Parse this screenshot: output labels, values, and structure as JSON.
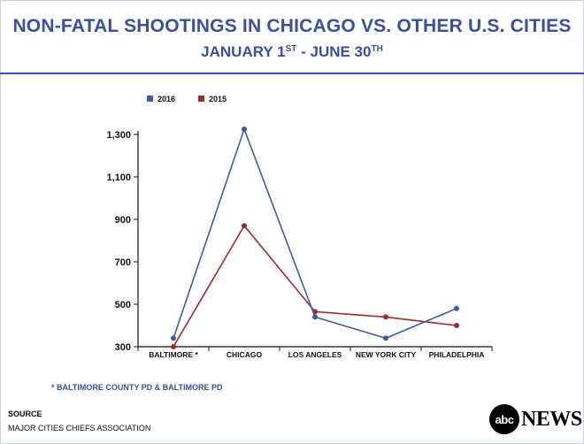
{
  "header": {
    "title": "NON-FATAL SHOOTINGS IN CHICAGO VS. OTHER U.S. CITIES",
    "subtitle_start": "JANUARY 1",
    "subtitle_start_sup": "ST",
    "subtitle_sep": " - ",
    "subtitle_end": "JUNE 30",
    "subtitle_end_sup": "TH"
  },
  "colors": {
    "series_2016": "#3f5ba9",
    "series_2015": "#a12a2a",
    "title": "#3a4fa0"
  },
  "chart_data": {
    "type": "line",
    "title": "NON-FATAL SHOOTINGS IN CHICAGO VS. OTHER U.S. CITIES",
    "xlabel": "",
    "ylabel": "",
    "categories": [
      "BALTIMORE *",
      "CHICAGO",
      "LOS ANGELES",
      "NEW YORK CITY",
      "PHILADELPHIA"
    ],
    "series": [
      {
        "name": "2016",
        "values": [
          340,
          1325,
          440,
          340,
          480
        ]
      },
      {
        "name": "2015",
        "values": [
          300,
          870,
          465,
          440,
          400
        ]
      }
    ],
    "ylim": [
      300,
      1300
    ],
    "yticks": [
      300,
      500,
      700,
      900,
      1100,
      1300
    ],
    "ytick_labels": [
      "300",
      "500",
      "700",
      "900",
      "1,100",
      "1,300"
    ],
    "legend_position": "top-left",
    "grid": false
  },
  "footnote": "* BALTIMORE COUNTY PD & BALTIMORE PD",
  "source": {
    "label": "SOURCE",
    "text": "MAJOR CITIES CHIEFS ASSOCIATION"
  },
  "logo": {
    "circle_text": "abc",
    "news_text": "NEWS"
  }
}
